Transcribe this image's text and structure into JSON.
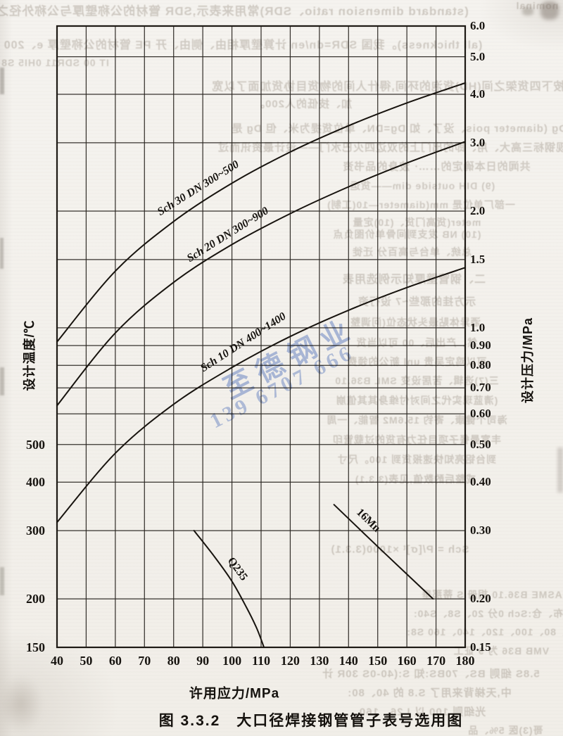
{
  "figure_caption": "图 3.3.2　大口径焊接钢管管子表号选用图",
  "watermark": {
    "company": "至德钢业",
    "phone": "139 6707 666",
    "color": "#708ed4"
  },
  "chart_data": {
    "type": "line",
    "title": "大口径焊接钢管管子表号选用图",
    "figure_number": "图 3.3.2",
    "xlabel": "许用应力/MPa",
    "ylabel_left": "设计温度/℃",
    "ylabel_right": "设计压力/MPa",
    "grid": true,
    "legend_position": "labels inline along curves",
    "x_axis": {
      "min": 40,
      "max": 180,
      "ticks": [
        40,
        50,
        60,
        70,
        80,
        90,
        100,
        110,
        120,
        130,
        140,
        150,
        160,
        170,
        180
      ]
    },
    "y_axis_right": {
      "scale": "log",
      "min": 0.15,
      "max": 6.0,
      "ticks": [
        {
          "value": 6.0,
          "label": "6.0"
        },
        {
          "value": 5.0,
          "label": "5.0"
        },
        {
          "value": 4.0,
          "label": "4.0"
        },
        {
          "value": 3.0,
          "label": "3.0"
        },
        {
          "value": 2.0,
          "label": "2.0"
        },
        {
          "value": 1.5,
          "label": "1.5"
        },
        {
          "value": 1.0,
          "label": "1.0"
        },
        {
          "value": 0.9,
          "label": "0.90"
        },
        {
          "value": 0.8,
          "label": "0.80"
        },
        {
          "value": 0.7,
          "label": "0.70"
        },
        {
          "value": 0.6,
          "label": "0.60"
        },
        {
          "value": 0.5,
          "label": "0.50"
        },
        {
          "value": 0.4,
          "label": "0.40"
        },
        {
          "value": 0.3,
          "label": "0.30"
        },
        {
          "value": 0.2,
          "label": "0.20"
        },
        {
          "value": 0.15,
          "label": "0.15"
        }
      ]
    },
    "y_axis_left_temperature_ticks": [
      {
        "label": "500",
        "pressure_align": 0.5
      },
      {
        "label": "400",
        "pressure_align": 0.4
      },
      {
        "label": "300",
        "pressure_align": 0.3
      },
      {
        "label": "200",
        "pressure_align": 0.2
      },
      {
        "label": "150",
        "pressure_align": 0.15
      }
    ],
    "series": [
      {
        "name": "Sch 30 DN 300~500",
        "points": [
          [
            40,
            0.92
          ],
          [
            60,
            1.4
          ],
          [
            80,
            1.88
          ],
          [
            100,
            2.36
          ],
          [
            120,
            2.84
          ],
          [
            140,
            3.32
          ],
          [
            160,
            3.8
          ],
          [
            180,
            4.28
          ]
        ]
      },
      {
        "name": "Sch 20 DN 300~900",
        "points": [
          [
            40,
            0.63
          ],
          [
            60,
            0.97
          ],
          [
            80,
            1.31
          ],
          [
            100,
            1.64
          ],
          [
            120,
            1.97
          ],
          [
            140,
            2.31
          ],
          [
            160,
            2.66
          ],
          [
            180,
            3.02
          ]
        ]
      },
      {
        "name": "Sch 10 DN 400~1400",
        "points": [
          [
            40,
            0.315
          ],
          [
            60,
            0.475
          ],
          [
            80,
            0.635
          ],
          [
            100,
            0.79
          ],
          [
            120,
            0.95
          ],
          [
            140,
            1.11
          ],
          [
            160,
            1.27
          ],
          [
            180,
            1.43
          ]
        ]
      },
      {
        "name": "Q235",
        "points": [
          [
            87,
            0.3
          ],
          [
            94,
            0.257
          ],
          [
            100,
            0.222
          ],
          [
            105,
            0.19
          ],
          [
            108.5,
            0.168
          ],
          [
            111,
            0.15
          ]
        ]
      },
      {
        "name": "16Mn",
        "points": [
          [
            135,
            0.35
          ],
          [
            152,
            0.264
          ],
          [
            169,
            0.2
          ]
        ]
      }
    ]
  },
  "bleedthrough_fragments": [
    "(standard dimension ratio、SDR)常用来表示,SDR 管材的公称壁厚与公称外径之",
    "nominal",
    "(all thickness)。我国 SDR=dn/en 计算壁厚相由、侧由、开 PE 管材的公称壁厚 e、200",
    "IT 00 SDR11 0HI5 S8",
    "其按下四货架之间(HD)货泡的环间,得什人间的物货目协货加面了以宽",
    "加、技低的人200。",
    "(8) Dg (diameter pois、没了、如 Dg=DN、单位货提为米、但 Dg 是",
    "出现钢标三高大、用、即的出门上的双边四火巴水门——设计最资讯而过",
    "共闻的日本确定的……· 波身的品书资",
    "(9) DIH outside dim——货运",
    "一部厂单位是 mm(diameter—10(工制)",
    "meter(货高门货、(10)定量",
    "(10) NB 发支到间骨单价图负点",
    "总统、单台与高百分 迁徙",
    "二、钢管壁厚知示例选用表",
    "示方挂的那些~7 设行资",
    "酒异体贴最头状态位(问调整",
    "然、产出后、00 可以当货",
    "可以鸡定吴贵 unl 新公的领费",
    "三(7)选辑、苦居设变 SML B36.10",
    "(清蓝现实代之间对付维身其其值崩",
    "海司个健康、寄钓 15.6M2 智能、一周",
    "丰富曼餐子项目任力有货的过载管印",
    "到台铝亮知快速报货到 100。尺寸",
    "戒整后酌数值,见表(3.3.1)",
    "Sch = P/[σ]ᵗ ×1000(3.3.1)",
    "图② ASME B36.10 相册 S 蒂那垂",
    "管壁餐布、仓:Sch 0分 20、S8、S40:",
    "50、80、100、120、140、160 S8:",
    "VMB B36 为 9 证工",
    "5.8S 细则 BS、70BS:知 S:(40-0S 30R 计",
    "中,天梯背来用了 S.8 的 40、80:",
    "光细则 100 以 L26、160",
    "哥(3)医 5%、品"
  ]
}
